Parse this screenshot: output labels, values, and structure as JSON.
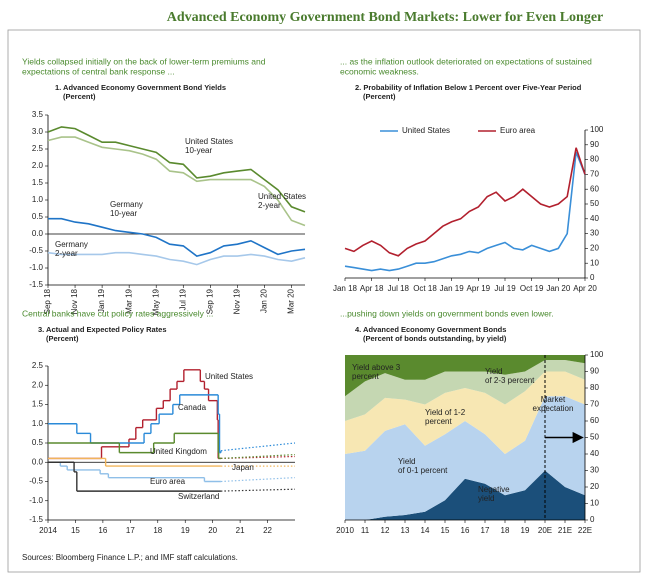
{
  "title": "Advanced Economy Government Bond Markets: Lower for Even Longer",
  "source": "Sources: Bloomberg Finance L.P.; and IMF staff calculations.",
  "chart_data": [
    {
      "type": "line",
      "caption": [
        "Yields collapsed initially on the back of lower-term premiums and",
        "expectations of central bank response ..."
      ],
      "title": "1. Advanced Economy Government Bond Yields",
      "subtitle": "(Percent)",
      "categories": [
        "Sep 18",
        null,
        "Nov 18",
        null,
        "Jan 19",
        null,
        "Mar 19",
        null,
        "May 19",
        null,
        "Jul 19",
        null,
        "Sep 19",
        null,
        "Nov 19",
        null,
        "Jan 20",
        null,
        "Mar 20",
        null
      ],
      "ylim": [
        -1.5,
        3.5
      ],
      "yticks": [
        -1.5,
        {
          "value": -1,
          "label": "-1.0"
        },
        -0.5,
        {
          "value": 0,
          "label": "0.0"
        },
        0.5,
        {
          "value": 1,
          "label": "1.0"
        },
        1.5,
        {
          "value": 2,
          "label": "2.0"
        },
        2.5,
        {
          "value": 3,
          "label": "3.0"
        },
        3.5
      ],
      "y_axis": "left",
      "series": [
        {
          "label_lines": [
            "United States",
            "10-year"
          ],
          "color": "#5a8a2e",
          "values": [
            3.0,
            3.15,
            3.1,
            2.9,
            2.7,
            2.7,
            2.6,
            2.5,
            2.4,
            2.1,
            2.05,
            1.65,
            1.7,
            1.8,
            1.85,
            1.9,
            1.6,
            1.3,
            0.8,
            0.65
          ]
        },
        {
          "label_lines": [
            "United States",
            "2-year"
          ],
          "color": "#a9c38a",
          "values": [
            2.75,
            2.85,
            2.85,
            2.7,
            2.55,
            2.5,
            2.45,
            2.35,
            2.2,
            1.85,
            1.8,
            1.55,
            1.6,
            1.6,
            1.6,
            1.6,
            1.4,
            1.0,
            0.4,
            0.25
          ]
        },
        {
          "label_lines": [
            "Germany",
            "10-year"
          ],
          "color": "#1f74c7",
          "values": [
            0.45,
            0.45,
            0.35,
            0.3,
            0.2,
            0.1,
            0.05,
            0.0,
            -0.1,
            -0.3,
            -0.35,
            -0.65,
            -0.55,
            -0.35,
            -0.3,
            -0.2,
            -0.4,
            -0.6,
            -0.5,
            -0.45
          ]
        },
        {
          "label_lines": [
            "Germany",
            "2-year"
          ],
          "color": "#a6c8ea",
          "values": [
            -0.55,
            -0.6,
            -0.6,
            -0.6,
            -0.6,
            -0.55,
            -0.55,
            -0.6,
            -0.65,
            -0.75,
            -0.8,
            -0.9,
            -0.75,
            -0.65,
            -0.65,
            -0.6,
            -0.65,
            -0.75,
            -0.8,
            -0.7
          ]
        }
      ]
    },
    {
      "type": "line",
      "caption": [
        "... as the inflation outlook deteriorated on expectations of sustained",
        "economic weakness."
      ],
      "title": "2. Probability of Inflation Below 1 Percent over Five-Year Period",
      "subtitle": "(Percent)",
      "categories": [
        "Jan 18",
        null,
        null,
        "Apr 18",
        null,
        null,
        "Jul 18",
        null,
        null,
        "Oct 18",
        null,
        null,
        "Jan 19",
        null,
        null,
        "Apr 19",
        null,
        null,
        "Jul 19",
        null,
        null,
        "Oct 19",
        null,
        null,
        "Jan 20",
        null,
        null,
        "Apr 20"
      ],
      "ylim": [
        0,
        100
      ],
      "yticks": [
        0,
        10,
        20,
        30,
        40,
        50,
        60,
        70,
        80,
        90,
        100
      ],
      "y_axis": "right",
      "legend": "top",
      "series": [
        {
          "name": "United States",
          "color": "#3a8fd8",
          "values": [
            8,
            7,
            6,
            5,
            6,
            5,
            6,
            8,
            10,
            10,
            11,
            13,
            15,
            16,
            18,
            17,
            20,
            22,
            24,
            20,
            19,
            22,
            20,
            18,
            20,
            30,
            85,
            70
          ]
        },
        {
          "name": "Euro area",
          "color": "#b2202e",
          "values": [
            20,
            18,
            22,
            25,
            22,
            17,
            15,
            20,
            23,
            25,
            30,
            35,
            38,
            40,
            45,
            48,
            55,
            58,
            52,
            55,
            60,
            55,
            50,
            48,
            50,
            55,
            88,
            70
          ]
        }
      ]
    },
    {
      "type": "step",
      "caption": [
        "Central banks have cut policy rates aggressively ..."
      ],
      "title": "3. Actual and Expected Policy Rates",
      "subtitle": "(Percent)",
      "xlim": [
        2014,
        2023
      ],
      "xticks": [
        2014,
        {
          "value": 2015,
          "label": "15"
        },
        {
          "value": 2016,
          "label": "16"
        },
        {
          "value": 2017,
          "label": "17"
        },
        {
          "value": 2018,
          "label": "18"
        },
        {
          "value": 2019,
          "label": "19"
        },
        {
          "value": 2020,
          "label": "20"
        },
        {
          "value": 2021,
          "label": "21"
        },
        {
          "value": 2022,
          "label": "22"
        }
      ],
      "ylim": [
        -1.5,
        2.5
      ],
      "yticks": [
        -1.5,
        {
          "value": -1,
          "label": "-1.0"
        },
        -0.5,
        {
          "value": 0,
          "label": "0.0"
        },
        0.5,
        {
          "value": 1,
          "label": "1.0"
        },
        1.5,
        {
          "value": 2,
          "label": "2.0"
        },
        2.5
      ],
      "y_axis": "left",
      "series": [
        {
          "name": "United States",
          "color": "#b2202e",
          "x": [
            2014,
            2015.95,
            2016.95,
            2017.2,
            2017.45,
            2017.95,
            2018.2,
            2018.45,
            2018.7,
            2018.95,
            2019.55,
            2019.7,
            2019.85,
            2020.17,
            2020.2
          ],
          "values": [
            0.1,
            0.4,
            0.6,
            0.9,
            1.1,
            1.4,
            1.6,
            1.9,
            2.1,
            2.4,
            2.1,
            1.9,
            1.6,
            1.1,
            0.1
          ],
          "expected_x": [
            2020.3,
            2023
          ],
          "expected_values": [
            0.1,
            0.15
          ]
        },
        {
          "name": "Canada",
          "color": "#2a8ad8",
          "x": [
            2014,
            2015.05,
            2015.55,
            2017.5,
            2017.75,
            2018.05,
            2018.55,
            2018.8,
            2020.2,
            2020.25
          ],
          "values": [
            1.0,
            0.75,
            0.5,
            0.75,
            1.0,
            1.25,
            1.5,
            1.75,
            1.25,
            0.25
          ],
          "expected_x": [
            2020.3,
            2023
          ],
          "expected_values": [
            0.3,
            0.5
          ]
        },
        {
          "name": "United Kingdom",
          "color": "#5a8a2e",
          "x": [
            2014,
            2016.6,
            2017.85,
            2018.6,
            2020.2,
            2020.22
          ],
          "values": [
            0.5,
            0.25,
            0.5,
            0.75,
            0.25,
            0.1
          ],
          "expected_x": [
            2020.3,
            2023
          ],
          "expected_values": [
            0.1,
            0.2
          ]
        },
        {
          "name": "Japan",
          "color": "#f2b55a",
          "x": [
            2014,
            2016.1
          ],
          "values": [
            0.1,
            -0.1
          ],
          "expected_x": [
            2020.3,
            2023
          ],
          "expected_values": [
            -0.1,
            -0.1
          ]
        },
        {
          "name": "Euro area",
          "color": "#8fbfe8",
          "x": [
            2014,
            2014.45,
            2014.7,
            2015.9,
            2016.2,
            2019.7
          ],
          "values": [
            0.0,
            -0.1,
            -0.2,
            -0.3,
            -0.4,
            -0.5
          ],
          "expected_x": [
            2020.3,
            2023
          ],
          "expected_values": [
            -0.5,
            -0.4
          ]
        },
        {
          "name": "Switzerland",
          "color": "#333333",
          "x": [
            2014,
            2014.95,
            2015.05
          ],
          "values": [
            0.0,
            -0.25,
            -0.75
          ],
          "expected_x": [
            2020.3,
            2023
          ],
          "expected_values": [
            -0.75,
            -0.7
          ]
        }
      ]
    },
    {
      "type": "area",
      "stacked": true,
      "caption": [
        "...pushing down yields on government bonds even lower."
      ],
      "title": "4. Advanced Economy Government Bonds",
      "subtitle": "(Percent of bonds outstanding, by yield)",
      "categories": [
        "2010",
        "11",
        "12",
        "13",
        "14",
        "15",
        "16",
        "17",
        "18",
        "19",
        "20E",
        "21E",
        "22E"
      ],
      "ylim": [
        0,
        100
      ],
      "yticks": [
        0,
        10,
        20,
        30,
        40,
        50,
        60,
        70,
        80,
        90,
        100
      ],
      "y_axis": "right",
      "annotation": [
        "Market",
        "expectation"
      ],
      "series": [
        {
          "label_lines": [
            "Negative",
            "yield"
          ],
          "color": "#1b4f7a",
          "values": [
            0,
            0,
            2,
            3,
            5,
            12,
            25,
            22,
            15,
            18,
            30,
            20,
            15
          ]
        },
        {
          "label_lines": [
            "Yield",
            "of 0-1 percent"
          ],
          "color": "#b8d3ee",
          "values": [
            40,
            42,
            52,
            55,
            40,
            40,
            35,
            30,
            25,
            30,
            45,
            55,
            55
          ]
        },
        {
          "label_lines": [
            "Yield of 1-2",
            "percent"
          ],
          "color": "#f7e7b3",
          "values": [
            20,
            22,
            20,
            15,
            25,
            25,
            20,
            25,
            30,
            30,
            15,
            15,
            15
          ]
        },
        {
          "label_lines": [
            "Yield",
            "of 2-3 percent"
          ],
          "color": "#c5d7b2",
          "values": [
            15,
            20,
            15,
            12,
            15,
            13,
            10,
            13,
            18,
            12,
            7,
            7,
            10
          ]
        },
        {
          "label_lines": [
            "Yield above 3",
            "percent"
          ],
          "color": "#5a8a2e",
          "values": [
            25,
            16,
            11,
            15,
            15,
            10,
            10,
            10,
            12,
            10,
            3,
            3,
            5
          ]
        }
      ]
    }
  ]
}
